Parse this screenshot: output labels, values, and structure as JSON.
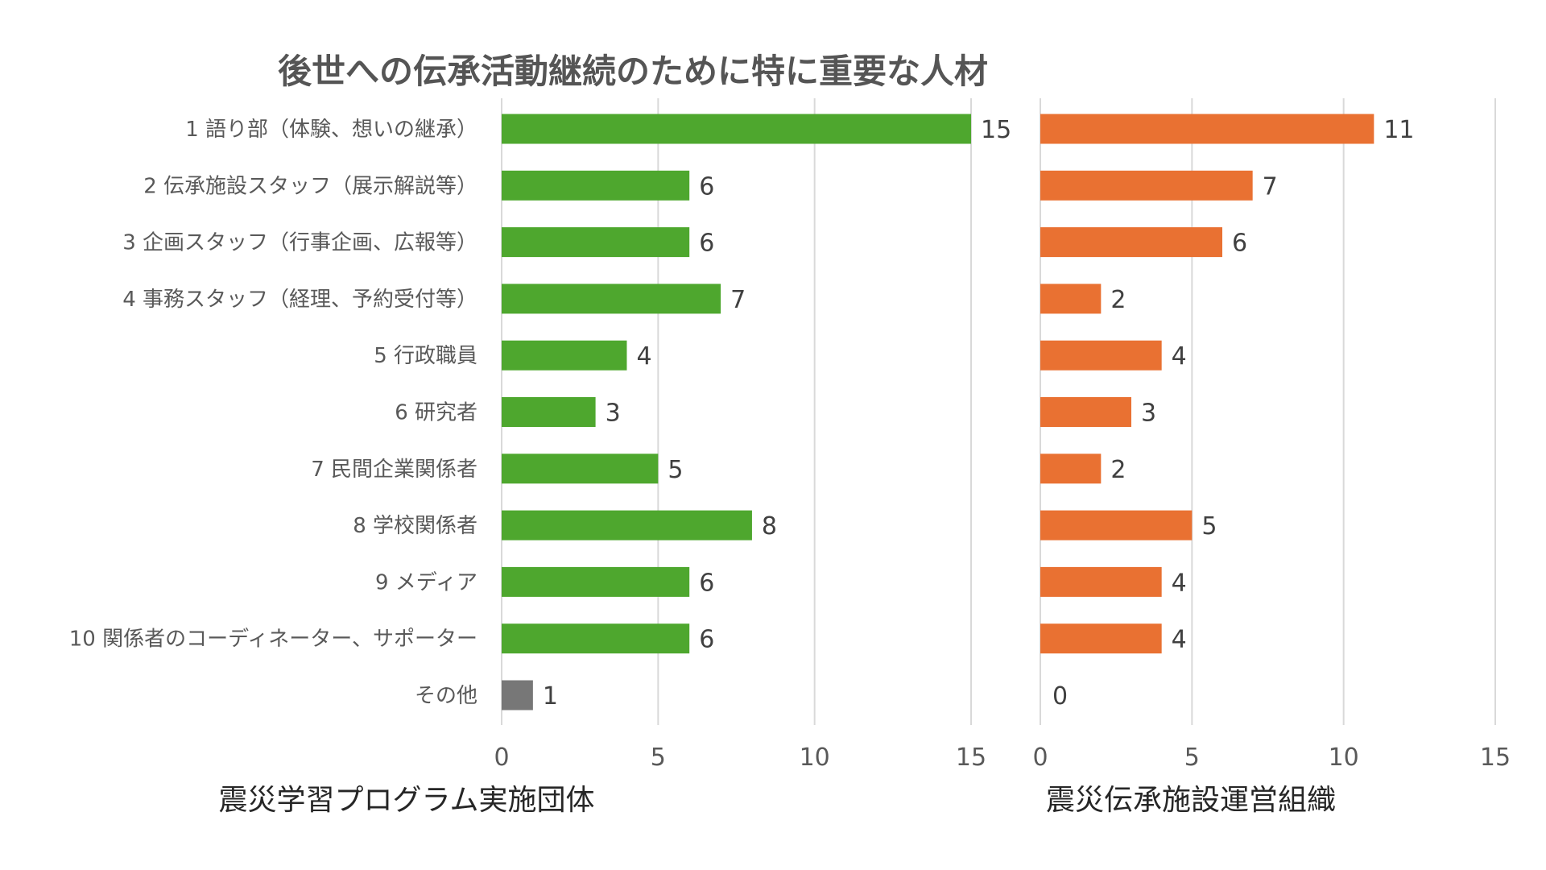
{
  "chart_data": [
    {
      "type": "bar",
      "orientation": "horizontal",
      "title": "後世への伝承活動継続のために特に重要な人材",
      "xlabel": "震災学習プログラム実施団体",
      "categories": [
        "1 語り部（体験、想いの継承）",
        "2 伝承施設スタッフ（展示解説等）",
        "3 企画スタッフ（行事企画、広報等）",
        "4 事務スタッフ（経理、予約受付等）",
        "5 行政職員",
        "6 研究者",
        "7 民間企業関係者",
        "8 学校関係者",
        "9 メディア",
        "10 関係者のコーディネーター、サポーター",
        "その他"
      ],
      "values": [
        15,
        6,
        6,
        7,
        4,
        3,
        5,
        8,
        6,
        6,
        1
      ],
      "bar_colors": [
        "#4ea72e",
        "#4ea72e",
        "#4ea72e",
        "#4ea72e",
        "#4ea72e",
        "#4ea72e",
        "#4ea72e",
        "#4ea72e",
        "#4ea72e",
        "#4ea72e",
        "#777777"
      ],
      "xlim": [
        0,
        15
      ],
      "xticks": [
        0,
        5,
        10,
        15
      ],
      "grid": true
    },
    {
      "type": "bar",
      "orientation": "horizontal",
      "xlabel": "震災伝承施設運営組織",
      "values": [
        11,
        7,
        6,
        2,
        4,
        3,
        2,
        5,
        4,
        4,
        0
      ],
      "bar_color": "#e97132",
      "xlim": [
        0,
        15
      ],
      "xticks": [
        0,
        5,
        10,
        15
      ],
      "grid": true
    }
  ]
}
